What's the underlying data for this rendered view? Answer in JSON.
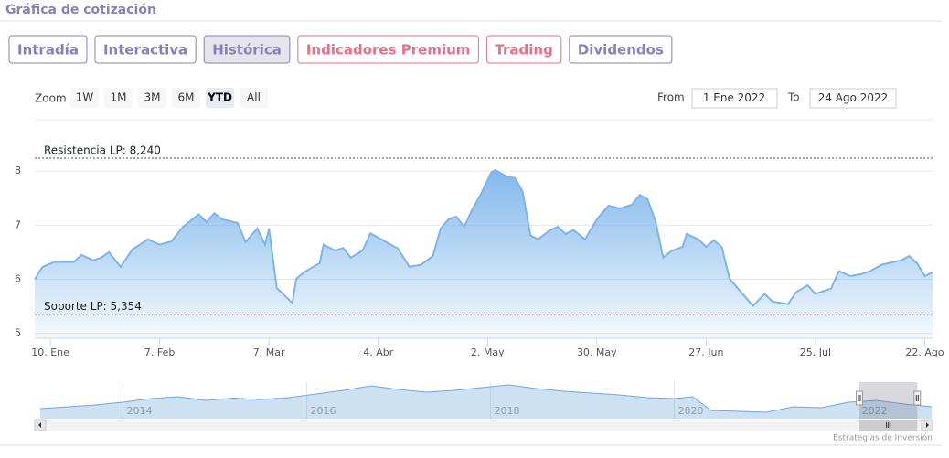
{
  "header": {
    "title": "Gráfica de cotización"
  },
  "tabs": [
    {
      "label": "Intradía",
      "color": "#8a80b8"
    },
    {
      "label": "Interactiva",
      "color": "#8a80b8"
    },
    {
      "label": "Histórica",
      "color": "#8a80b8",
      "active": true
    },
    {
      "label": "Indicadores Premium",
      "color": "#e0728c"
    },
    {
      "label": "Trading",
      "color": "#e0728c"
    },
    {
      "label": "Dividendos",
      "color": "#8a80b8"
    }
  ],
  "range_selector": {
    "zoom_label": "Zoom",
    "buttons": [
      "1W",
      "1M",
      "3M",
      "6M",
      "YTD",
      "All"
    ],
    "selected": 4,
    "from_label": "From",
    "from_value": "1 Ene 2022",
    "to_label": "To",
    "to_value": "24 Ago 2022"
  },
  "chart_data": {
    "type": "area",
    "color": "#7cb5ec",
    "grid": true,
    "x": [
      "2022-01-06",
      "2022-01-08",
      "2022-01-11",
      "2022-01-16",
      "2022-01-18",
      "2022-01-21",
      "2022-01-23",
      "2022-01-25",
      "2022-01-28",
      "2022-01-31",
      "2022-02-04",
      "2022-02-07",
      "2022-02-10",
      "2022-02-13",
      "2022-02-17",
      "2022-02-19",
      "2022-02-21",
      "2022-02-23",
      "2022-02-27",
      "2022-03-01",
      "2022-03-04",
      "2022-03-06",
      "2022-03-07",
      "2022-03-09",
      "2022-03-13",
      "2022-03-14",
      "2022-03-16",
      "2022-03-20",
      "2022-03-21",
      "2022-03-24",
      "2022-03-26",
      "2022-03-28",
      "2022-03-31",
      "2022-04-02",
      "2022-04-06",
      "2022-04-09",
      "2022-04-12",
      "2022-04-15",
      "2022-04-18",
      "2022-04-20",
      "2022-04-22",
      "2022-04-24",
      "2022-04-26",
      "2022-04-28",
      "2022-04-30",
      "2022-05-03",
      "2022-05-04",
      "2022-05-07",
      "2022-05-09",
      "2022-05-11",
      "2022-05-13",
      "2022-05-15",
      "2022-05-18",
      "2022-05-20",
      "2022-05-22",
      "2022-05-24",
      "2022-05-27",
      "2022-05-30",
      "2022-06-02",
      "2022-06-05",
      "2022-06-08",
      "2022-06-10",
      "2022-06-12",
      "2022-06-14",
      "2022-06-16",
      "2022-06-18",
      "2022-06-21",
      "2022-06-22",
      "2022-06-25",
      "2022-06-27",
      "2022-06-29",
      "2022-07-01",
      "2022-07-03",
      "2022-07-06",
      "2022-07-09",
      "2022-07-12",
      "2022-07-14",
      "2022-07-18",
      "2022-07-20",
      "2022-07-23",
      "2022-07-25",
      "2022-07-29",
      "2022-07-31",
      "2022-08-03",
      "2022-08-06",
      "2022-08-08",
      "2022-08-11",
      "2022-08-14",
      "2022-08-16",
      "2022-08-18",
      "2022-08-20",
      "2022-08-22",
      "2022-08-24"
    ],
    "values": [
      6.0,
      6.23,
      6.32,
      6.32,
      6.45,
      6.35,
      6.4,
      6.5,
      6.23,
      6.55,
      6.74,
      6.64,
      6.7,
      6.97,
      7.2,
      7.06,
      7.22,
      7.11,
      7.04,
      6.69,
      6.94,
      6.64,
      6.94,
      5.84,
      5.56,
      6.01,
      6.13,
      6.3,
      6.64,
      6.53,
      6.58,
      6.4,
      6.53,
      6.85,
      6.69,
      6.57,
      6.23,
      6.27,
      6.43,
      6.94,
      7.11,
      7.16,
      6.97,
      7.28,
      7.53,
      7.98,
      8.02,
      7.9,
      7.87,
      7.62,
      6.81,
      6.74,
      6.91,
      6.97,
      6.84,
      6.91,
      6.74,
      7.11,
      7.36,
      7.31,
      7.38,
      7.56,
      7.48,
      7.08,
      6.4,
      6.52,
      6.6,
      6.84,
      6.74,
      6.6,
      6.72,
      6.6,
      6.01,
      5.76,
      5.51,
      5.73,
      5.59,
      5.54,
      5.76,
      5.89,
      5.73,
      5.83,
      6.15,
      6.06,
      6.1,
      6.15,
      6.27,
      6.32,
      6.35,
      6.43,
      6.3,
      6.06,
      6.13
    ],
    "xlim": [
      "2022-01-06",
      "2022-08-24"
    ],
    "xticks": [
      {
        "value": "2022-01-10",
        "label": "10. Ene"
      },
      {
        "value": "2022-02-07",
        "label": "7. Feb"
      },
      {
        "value": "2022-03-07",
        "label": "7. Mar"
      },
      {
        "value": "2022-04-04",
        "label": "4. Abr"
      },
      {
        "value": "2022-05-02",
        "label": "2. May"
      },
      {
        "value": "2022-05-30",
        "label": "30. May"
      },
      {
        "value": "2022-06-27",
        "label": "27. Jun"
      },
      {
        "value": "2022-07-25",
        "label": "25. Jul"
      },
      {
        "value": "2022-08-22",
        "label": "22. Ago"
      }
    ],
    "ylim": [
      4.91,
      8.78
    ],
    "yticks": [
      5,
      6,
      7,
      8
    ],
    "plot_lines": [
      {
        "label": "Resistencia LP: 8,240",
        "value": 8.24,
        "color": "#2e5e2e"
      },
      {
        "label": "Soporte LP: 5,354",
        "value": 5.354,
        "color": "#6e1f3a"
      }
    ],
    "navigator": {
      "color": "#6fa8dc",
      "x": [
        2013.1,
        2013.4,
        2013.7,
        2014.0,
        2014.3,
        2014.6,
        2014.9,
        2015.2,
        2015.5,
        2015.8,
        2016.1,
        2016.4,
        2016.7,
        2017.0,
        2017.3,
        2017.6,
        2017.9,
        2018.2,
        2018.5,
        2018.8,
        2019.1,
        2019.4,
        2019.7,
        2020.0,
        2020.2,
        2020.4,
        2020.7,
        2021.0,
        2021.3,
        2021.6,
        2021.9,
        2022.2,
        2022.5,
        2022.8
      ],
      "values": [
        4.2,
        4.6,
        5.0,
        5.6,
        6.4,
        6.8,
        6.0,
        6.5,
        6.2,
        6.6,
        7.4,
        8.2,
        9.2,
        8.4,
        7.8,
        8.2,
        8.8,
        9.4,
        8.6,
        8.0,
        7.6,
        7.2,
        6.6,
        6.4,
        6.8,
        3.8,
        3.6,
        3.4,
        4.6,
        4.4,
        5.6,
        6.0,
        5.2,
        4.6
      ],
      "xlim": [
        2013.04,
        2022.81
      ],
      "ylim": [
        2,
        10
      ],
      "xticks": [
        2014,
        2016,
        2018,
        2020,
        2022
      ]
    }
  },
  "credit": "Estrategias de Inversión"
}
